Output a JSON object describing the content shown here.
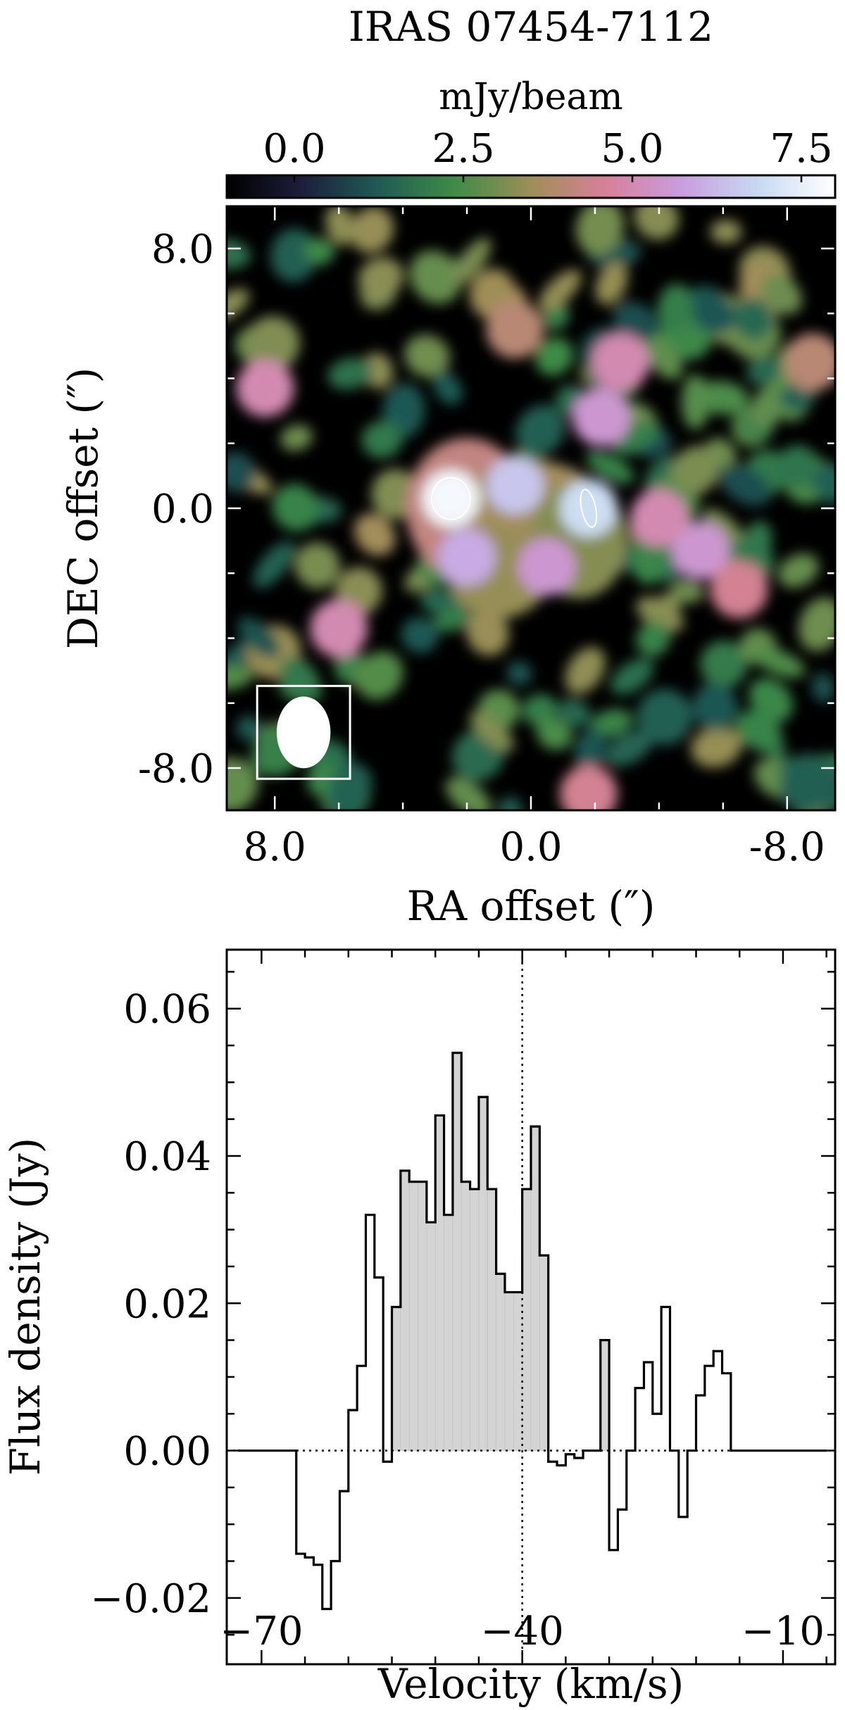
{
  "colorbar": {
    "title": "mJy/beam",
    "ticks": [
      "0.0",
      "2.5",
      "5.0",
      "7.5"
    ],
    "tick_values": [
      0.0,
      2.5,
      5.0,
      7.5
    ],
    "range": [
      -1.0,
      8.0
    ],
    "colors": [
      "#000000",
      "#1d1f3c",
      "#1f5b54",
      "#3f8c47",
      "#9e8e57",
      "#d8809a",
      "#c89ee0",
      "#c8daf2",
      "#ffffff"
    ]
  },
  "chart_data": [
    {
      "type": "heatmap",
      "title": "IRAS 07454-7112",
      "xlabel": "RA offset (″)",
      "ylabel": "DEC offset (″)",
      "x_ticks": [
        "8.0",
        "0.0",
        "-8.0"
      ],
      "x_tick_values": [
        8.0,
        0.0,
        -8.0
      ],
      "y_ticks": [
        "8.0",
        "0.0",
        "-8.0"
      ],
      "y_tick_values": [
        8.0,
        0.0,
        -8.0
      ],
      "xlim": [
        9.5,
        -9.5
      ],
      "ylim": [
        -9.3,
        9.3
      ],
      "beam": {
        "bmaj_arcsec": 1.4,
        "bmin_arcsec": 1.05,
        "center": [
          7.1,
          -6.9
        ]
      },
      "emission_peaks": [
        {
          "ra": 2.5,
          "dec": 0.3,
          "peak_mJy": 7.8
        },
        {
          "ra": -1.8,
          "dec": 0.0,
          "peak_mJy": 7.0
        },
        {
          "ra": 0.5,
          "dec": 0.7,
          "peak_mJy": 6.5
        },
        {
          "ra": 2.0,
          "dec": -1.5,
          "peak_mJy": 6.0
        },
        {
          "ra": -0.5,
          "dec": -1.8,
          "peak_mJy": 5.5
        },
        {
          "ra": -2.2,
          "dec": 2.8,
          "peak_mJy": 5.5
        },
        {
          "ra": -5.3,
          "dec": -1.3,
          "peak_mJy": 5.5
        },
        {
          "ra": -4.0,
          "dec": -0.3,
          "peak_mJy": 5.0
        },
        {
          "ra": -2.8,
          "dec": 4.5,
          "peak_mJy": 5.0
        },
        {
          "ra": 8.3,
          "dec": 3.7,
          "peak_mJy": 5.0
        },
        {
          "ra": 6.0,
          "dec": -3.7,
          "peak_mJy": 5.0
        },
        {
          "ra": -6.5,
          "dec": -2.5,
          "peak_mJy": 4.5
        },
        {
          "ra": -1.8,
          "dec": -8.8,
          "peak_mJy": 4.5
        },
        {
          "ra": -8.8,
          "dec": 4.5,
          "peak_mJy": 4.0
        },
        {
          "ra": 0.5,
          "dec": 5.5,
          "peak_mJy": 4.0
        }
      ]
    },
    {
      "type": "bar",
      "title": "",
      "xlabel": "Velocity (km/s)",
      "ylabel": "Flux density (Jy)",
      "xlim": [
        -74,
        -4
      ],
      "ylim": [
        -0.029,
        0.068
      ],
      "x_ticks": [
        "−70",
        "−40",
        "−10"
      ],
      "x_tick_values": [
        -70,
        -40,
        -10
      ],
      "y_ticks": [
        "−0.02",
        "0.00",
        "0.02",
        "0.04",
        "0.06"
      ],
      "y_tick_values": [
        -0.02,
        0.0,
        0.02,
        0.04,
        0.06
      ],
      "reference_velocity": -40,
      "bin_edges": [
        -72.7,
        -66.0,
        -65.0,
        -64.0,
        -63.0,
        -62.0,
        -61.0,
        -60.0,
        -59.0,
        -58.0,
        -57.0,
        -56.0,
        -55.0,
        -54.0,
        -53.0,
        -52.0,
        -51.0,
        -50.0,
        -49.0,
        -48.0,
        -47.0,
        -46.0,
        -45.0,
        -44.0,
        -43.0,
        -42.0,
        -41.0,
        -40.0,
        -39.0,
        -38.0,
        -37.0,
        -36.0,
        -35.0,
        -34.0,
        -33.0,
        -32.0,
        -31.0,
        -30.0,
        -29.0,
        -28.0,
        -27.0,
        -26.0,
        -25.0,
        -24.0,
        -23.0,
        -22.0,
        -21.0,
        -20.0,
        -19.0,
        -18.0,
        -17.0,
        -16.0,
        -15.0,
        -14.0,
        -13.0,
        -12.0,
        -11.0,
        -10.0,
        -9.0,
        -8.0,
        -7.0,
        -6.0,
        -5.0
      ],
      "values": [
        0.0,
        -0.014,
        -0.0145,
        -0.0155,
        -0.0215,
        -0.015,
        -0.0055,
        0.0055,
        0.0115,
        0.032,
        0.0235,
        -0.0015,
        0.0195,
        0.038,
        0.0365,
        0.0365,
        0.031,
        0.0455,
        0.032,
        0.054,
        0.0365,
        0.0355,
        0.048,
        0.0355,
        0.024,
        0.0215,
        0.0215,
        0.0355,
        0.044,
        0.0265,
        -0.0015,
        -0.002,
        -0.0005,
        -0.001,
        0.0,
        0.0,
        0.015,
        -0.0135,
        -0.008,
        0.0,
        0.0085,
        0.012,
        0.005,
        0.0195,
        0.0,
        -0.009,
        0.0,
        0.0075,
        0.0115,
        0.0135,
        0.0105,
        0.0,
        0.0,
        0.0,
        0.0,
        0.0,
        0.0,
        0.0,
        0.0,
        0.0,
        0.0,
        0.0
      ],
      "shaded_range": [
        -56.0,
        -29.0
      ]
    }
  ]
}
